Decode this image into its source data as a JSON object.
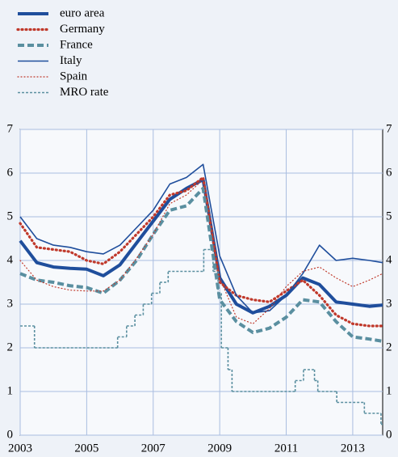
{
  "chart_data": {
    "type": "line",
    "x": [
      2003,
      2003.5,
      2004,
      2004.5,
      2005,
      2005.5,
      2006,
      2006.5,
      2007,
      2007.5,
      2008,
      2008.5,
      2009,
      2009.5,
      2010,
      2010.5,
      2011,
      2011.5,
      2012,
      2012.5,
      2013,
      2013.5,
      2013.9
    ],
    "series": [
      {
        "name": "euro area",
        "color": "#1f4e9c",
        "style": "thick",
        "values": [
          4.45,
          3.95,
          3.85,
          3.82,
          3.8,
          3.65,
          3.9,
          4.4,
          4.9,
          5.4,
          5.65,
          5.85,
          3.6,
          3.0,
          2.8,
          2.95,
          3.2,
          3.6,
          3.45,
          3.05,
          3.0,
          2.95,
          2.98
        ]
      },
      {
        "name": "Germany",
        "color": "#c0392b",
        "style": "dotted-thick",
        "values": [
          4.85,
          4.3,
          4.25,
          4.2,
          4.0,
          3.92,
          4.2,
          4.6,
          5.0,
          5.5,
          5.6,
          5.9,
          3.5,
          3.2,
          3.1,
          3.05,
          3.3,
          3.55,
          3.2,
          2.75,
          2.55,
          2.5,
          2.5
        ]
      },
      {
        "name": "France",
        "color": "#5a8fa0",
        "style": "dashed-thick",
        "values": [
          3.7,
          3.55,
          3.5,
          3.42,
          3.38,
          3.25,
          3.55,
          4.0,
          4.6,
          5.15,
          5.25,
          5.65,
          3.1,
          2.6,
          2.35,
          2.45,
          2.7,
          3.1,
          3.05,
          2.6,
          2.25,
          2.2,
          2.15
        ]
      },
      {
        "name": "Italy",
        "color": "#1f4e9c",
        "style": "thin",
        "values": [
          5.0,
          4.5,
          4.35,
          4.3,
          4.2,
          4.15,
          4.35,
          4.75,
          5.15,
          5.75,
          5.9,
          6.2,
          4.1,
          3.2,
          2.8,
          2.85,
          3.2,
          3.7,
          4.35,
          4.0,
          4.05,
          4.0,
          3.95
        ]
      },
      {
        "name": "Spain",
        "color": "#c0392b",
        "style": "dotted-thin",
        "values": [
          4.0,
          3.55,
          3.4,
          3.32,
          3.3,
          3.3,
          3.55,
          4.05,
          4.6,
          5.3,
          5.5,
          5.85,
          3.6,
          2.7,
          2.55,
          2.9,
          3.4,
          3.75,
          3.85,
          3.6,
          3.4,
          3.55,
          3.7
        ]
      },
      {
        "name": "MRO rate",
        "color": "#5a8fa0",
        "style": "dashed-thin",
        "step": true,
        "x": [
          2003,
          2003.43,
          2005.93,
          2006.2,
          2006.45,
          2006.7,
          2006.95,
          2007.2,
          2007.45,
          2008.52,
          2008.8,
          2008.95,
          2009.05,
          2009.25,
          2009.37,
          2011.27,
          2011.52,
          2011.85,
          2011.95,
          2012.52,
          2013.35,
          2013.85
        ],
        "values": [
          2.5,
          2.0,
          2.25,
          2.5,
          2.75,
          3.0,
          3.25,
          3.5,
          3.75,
          4.25,
          3.75,
          3.25,
          2.0,
          1.5,
          1.0,
          1.25,
          1.5,
          1.25,
          1.0,
          0.75,
          0.5,
          0.25
        ]
      }
    ],
    "xlim": [
      2003,
      2013.9
    ],
    "xticks": [
      2003,
      2005,
      2007,
      2009,
      2011,
      2013
    ],
    "ylim": [
      0,
      7
    ],
    "yticks": [
      0,
      1,
      2,
      3,
      4,
      5,
      6,
      7
    ],
    "grid": true
  }
}
